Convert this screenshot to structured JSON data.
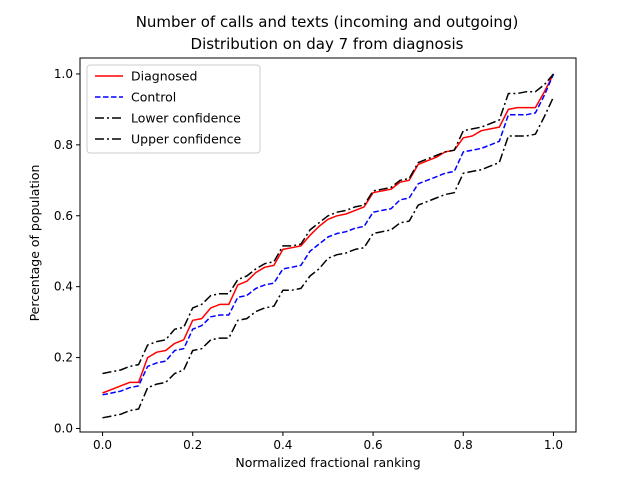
{
  "chart_data": {
    "type": "line",
    "title": "Number of calls and texts (incoming and outgoing)",
    "subtitle": "Distribution on day 7 from diagnosis",
    "xlabel": "Normalized fractional ranking",
    "ylabel": "Percentage of population",
    "xlim": [
      -0.05,
      1.05
    ],
    "ylim": [
      -0.01,
      1.045
    ],
    "xticks": [
      "0.0",
      "0.2",
      "0.4",
      "0.6",
      "0.8",
      "1.0"
    ],
    "yticks": [
      "0.0",
      "0.2",
      "0.4",
      "0.6",
      "0.8",
      "1.0"
    ],
    "legend_position": "top-left",
    "series": [
      {
        "name": "Diagnosed",
        "color": "#ff0000",
        "dash": "solid",
        "x": [
          0.0,
          0.04,
          0.06,
          0.08,
          0.1,
          0.12,
          0.14,
          0.16,
          0.18,
          0.2,
          0.22,
          0.24,
          0.26,
          0.28,
          0.3,
          0.32,
          0.34,
          0.36,
          0.38,
          0.4,
          0.42,
          0.44,
          0.46,
          0.48,
          0.5,
          0.52,
          0.54,
          0.56,
          0.58,
          0.6,
          0.62,
          0.64,
          0.66,
          0.68,
          0.7,
          0.72,
          0.74,
          0.76,
          0.78,
          0.8,
          0.82,
          0.84,
          0.86,
          0.88,
          0.9,
          0.92,
          0.94,
          0.96,
          0.98,
          1.0
        ],
        "y": [
          0.1,
          0.12,
          0.13,
          0.13,
          0.2,
          0.215,
          0.22,
          0.24,
          0.25,
          0.305,
          0.31,
          0.34,
          0.35,
          0.35,
          0.405,
          0.415,
          0.44,
          0.455,
          0.46,
          0.505,
          0.51,
          0.515,
          0.545,
          0.57,
          0.59,
          0.6,
          0.605,
          0.615,
          0.625,
          0.665,
          0.67,
          0.675,
          0.695,
          0.7,
          0.745,
          0.755,
          0.765,
          0.78,
          0.785,
          0.82,
          0.825,
          0.84,
          0.845,
          0.85,
          0.9,
          0.905,
          0.905,
          0.905,
          0.95,
          1.0
        ]
      },
      {
        "name": "Control",
        "color": "#0000ff",
        "dash": "dashed",
        "x": [
          0.0,
          0.04,
          0.06,
          0.08,
          0.1,
          0.12,
          0.14,
          0.16,
          0.18,
          0.2,
          0.22,
          0.24,
          0.26,
          0.28,
          0.3,
          0.32,
          0.34,
          0.36,
          0.38,
          0.4,
          0.42,
          0.44,
          0.46,
          0.48,
          0.5,
          0.52,
          0.54,
          0.56,
          0.58,
          0.6,
          0.62,
          0.64,
          0.66,
          0.68,
          0.7,
          0.72,
          0.74,
          0.76,
          0.78,
          0.8,
          0.82,
          0.84,
          0.86,
          0.88,
          0.9,
          0.92,
          0.94,
          0.96,
          0.98,
          1.0
        ],
        "y": [
          0.095,
          0.105,
          0.115,
          0.12,
          0.175,
          0.185,
          0.19,
          0.22,
          0.225,
          0.28,
          0.29,
          0.315,
          0.32,
          0.32,
          0.37,
          0.375,
          0.395,
          0.405,
          0.41,
          0.45,
          0.455,
          0.46,
          0.5,
          0.52,
          0.54,
          0.55,
          0.555,
          0.565,
          0.57,
          0.61,
          0.615,
          0.62,
          0.645,
          0.65,
          0.69,
          0.7,
          0.71,
          0.72,
          0.725,
          0.78,
          0.785,
          0.79,
          0.8,
          0.81,
          0.885,
          0.885,
          0.885,
          0.89,
          0.94,
          1.0
        ]
      },
      {
        "name": "Lower confidence",
        "color": "#000000",
        "dash": "dashdot",
        "x": [
          0.0,
          0.04,
          0.06,
          0.08,
          0.1,
          0.12,
          0.14,
          0.16,
          0.18,
          0.2,
          0.22,
          0.24,
          0.26,
          0.28,
          0.3,
          0.32,
          0.34,
          0.36,
          0.38,
          0.4,
          0.42,
          0.44,
          0.46,
          0.48,
          0.5,
          0.52,
          0.54,
          0.56,
          0.58,
          0.6,
          0.62,
          0.64,
          0.66,
          0.68,
          0.7,
          0.72,
          0.74,
          0.76,
          0.78,
          0.8,
          0.82,
          0.84,
          0.86,
          0.88,
          0.9,
          0.92,
          0.94,
          0.96,
          0.98,
          1.0
        ],
        "y": [
          0.03,
          0.04,
          0.05,
          0.055,
          0.115,
          0.125,
          0.13,
          0.155,
          0.165,
          0.22,
          0.225,
          0.25,
          0.255,
          0.255,
          0.305,
          0.31,
          0.33,
          0.34,
          0.345,
          0.39,
          0.39,
          0.395,
          0.43,
          0.45,
          0.48,
          0.49,
          0.495,
          0.505,
          0.51,
          0.55,
          0.555,
          0.56,
          0.58,
          0.585,
          0.63,
          0.64,
          0.65,
          0.66,
          0.665,
          0.72,
          0.725,
          0.73,
          0.74,
          0.75,
          0.825,
          0.825,
          0.825,
          0.83,
          0.88,
          0.935
        ]
      },
      {
        "name": "Upper confidence",
        "color": "#000000",
        "dash": "dashdot",
        "x": [
          0.0,
          0.04,
          0.06,
          0.08,
          0.1,
          0.12,
          0.14,
          0.16,
          0.18,
          0.2,
          0.22,
          0.24,
          0.26,
          0.28,
          0.3,
          0.32,
          0.34,
          0.36,
          0.38,
          0.4,
          0.42,
          0.44,
          0.46,
          0.48,
          0.5,
          0.52,
          0.54,
          0.56,
          0.58,
          0.6,
          0.62,
          0.64,
          0.66,
          0.68,
          0.7,
          0.72,
          0.74,
          0.76,
          0.78,
          0.8,
          0.82,
          0.84,
          0.86,
          0.88,
          0.9,
          0.92,
          0.94,
          0.96,
          0.98,
          1.0
        ],
        "y": [
          0.155,
          0.165,
          0.175,
          0.18,
          0.235,
          0.245,
          0.25,
          0.28,
          0.285,
          0.34,
          0.35,
          0.375,
          0.38,
          0.38,
          0.42,
          0.43,
          0.45,
          0.465,
          0.47,
          0.515,
          0.515,
          0.52,
          0.56,
          0.58,
          0.6,
          0.61,
          0.615,
          0.625,
          0.63,
          0.67,
          0.675,
          0.68,
          0.7,
          0.705,
          0.75,
          0.76,
          0.77,
          0.78,
          0.785,
          0.84,
          0.845,
          0.85,
          0.86,
          0.87,
          0.945,
          0.945,
          0.95,
          0.95,
          0.97,
          1.0
        ]
      }
    ]
  }
}
